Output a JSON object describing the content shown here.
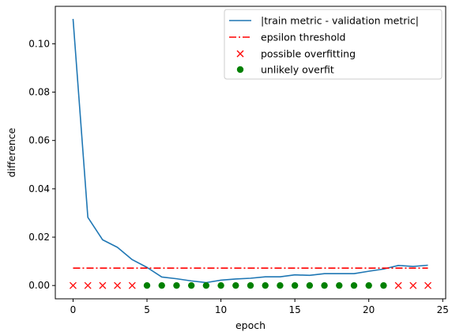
{
  "chart_data": {
    "type": "line",
    "xlabel": "epoch",
    "ylabel": "difference",
    "xlim": [
      -1.2,
      25.2
    ],
    "ylim": [
      -0.0055,
      0.1155
    ],
    "xticks": [
      0,
      5,
      10,
      15,
      20,
      25
    ],
    "yticks": [
      0.0,
      0.02,
      0.04,
      0.06,
      0.08,
      0.1
    ],
    "ytick_labels": [
      "0.00",
      "0.02",
      "0.04",
      "0.06",
      "0.08",
      "0.10"
    ],
    "grid": false,
    "legend_position": "top-right",
    "x": [
      0,
      1,
      2,
      3,
      4,
      5,
      6,
      7,
      8,
      9,
      10,
      11,
      12,
      13,
      14,
      15,
      16,
      17,
      18,
      19,
      20,
      21,
      22,
      23,
      24
    ],
    "series": [
      {
        "name": "|train metric - validation metric|",
        "kind": "line",
        "color": "#1f77b4",
        "values": [
          0.1103,
          0.0282,
          0.0189,
          0.0158,
          0.0107,
          0.0075,
          0.0035,
          0.0028,
          0.0019,
          0.0012,
          0.0022,
          0.0027,
          0.003,
          0.0036,
          0.0036,
          0.0044,
          0.0042,
          0.0049,
          0.0049,
          0.0049,
          0.0059,
          0.0068,
          0.0083,
          0.0079,
          0.0084
        ]
      },
      {
        "name": "epsilon threshold",
        "kind": "hline",
        "color": "#ff0000",
        "value": 0.0072
      },
      {
        "name": "possible overfitting",
        "kind": "scatter",
        "marker": "x",
        "color": "#ff0000",
        "x": [
          0,
          1,
          2,
          3,
          4,
          22,
          23,
          24
        ],
        "y": [
          0,
          0,
          0,
          0,
          0,
          0,
          0,
          0
        ]
      },
      {
        "name": "unlikely overfit",
        "kind": "scatter",
        "marker": "circle",
        "color": "#008000",
        "x": [
          5,
          6,
          7,
          8,
          9,
          10,
          11,
          12,
          13,
          14,
          15,
          16,
          17,
          18,
          19,
          20,
          21
        ],
        "y": [
          0,
          0,
          0,
          0,
          0,
          0,
          0,
          0,
          0,
          0,
          0,
          0,
          0,
          0,
          0,
          0,
          0
        ]
      }
    ]
  }
}
